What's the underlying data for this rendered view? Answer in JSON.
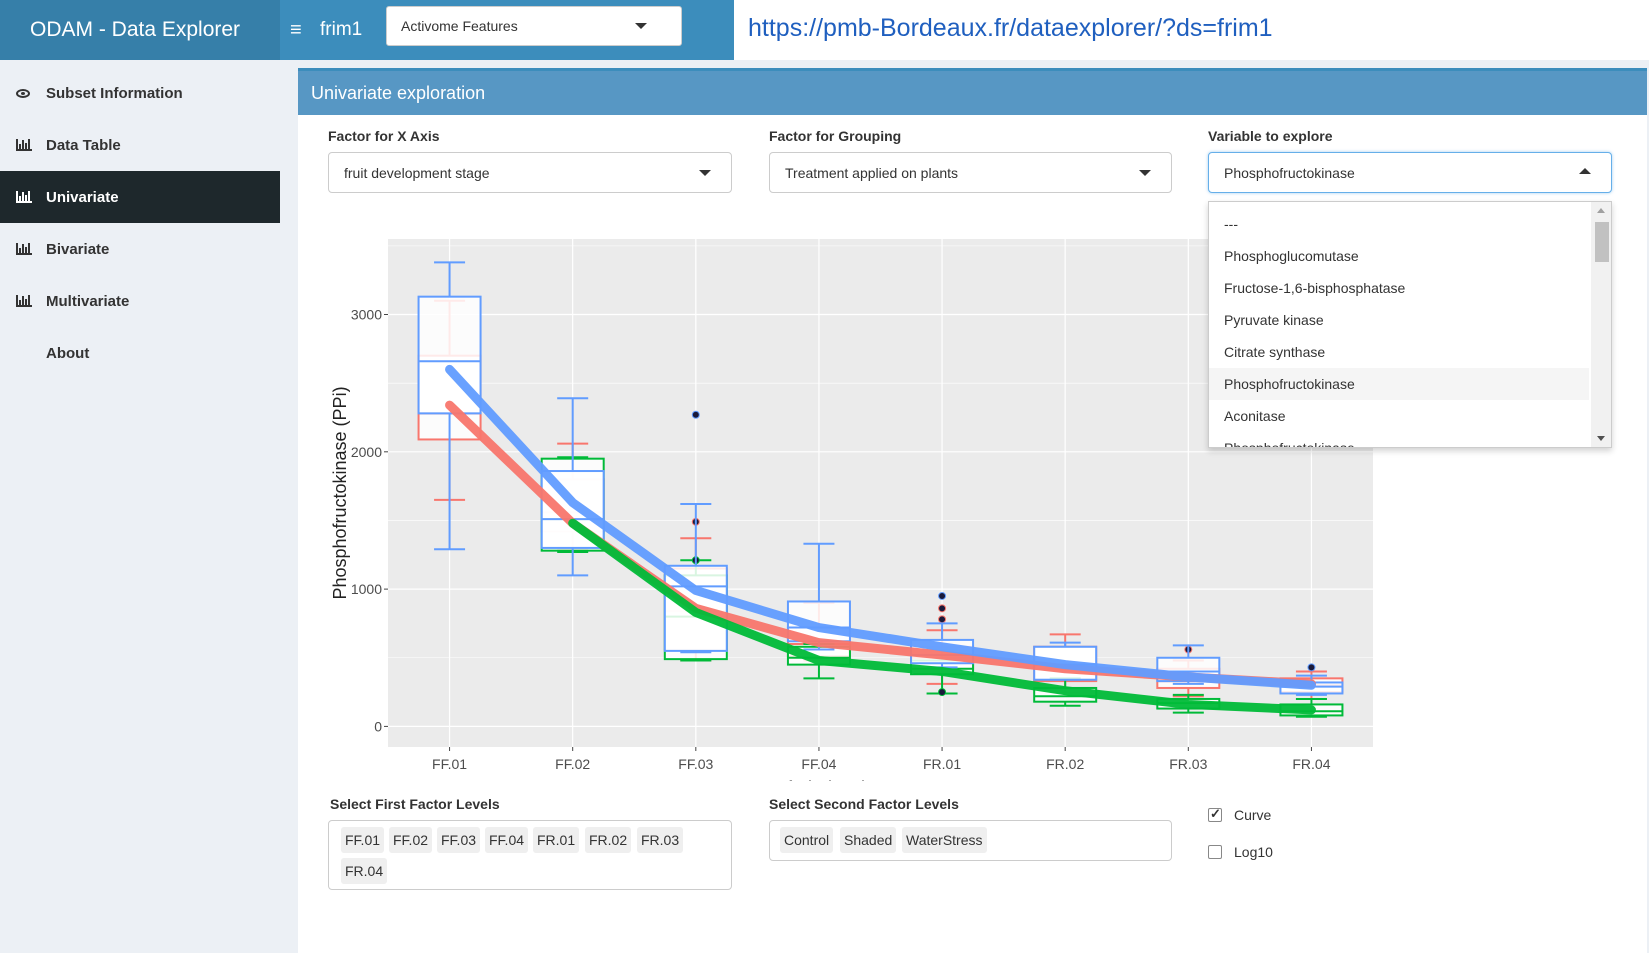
{
  "app": {
    "brand": "ODAM - Data Explorer",
    "dataset_name": "frim1",
    "feature_select": "Activome Features",
    "url": "https://pmb-Bordeaux.fr/dataexplorer/?ds=frim1"
  },
  "sidebar": {
    "items": [
      {
        "label": "Subset Information",
        "icon": "eye-icon"
      },
      {
        "label": "Data Table",
        "icon": "bar-chart-icon"
      },
      {
        "label": "Univariate",
        "icon": "bar-chart-icon",
        "active": true
      },
      {
        "label": "Bivariate",
        "icon": "bar-chart-icon"
      },
      {
        "label": "Multivariate",
        "icon": "bar-chart-icon"
      },
      {
        "label": "About",
        "icon": "info-icon"
      }
    ]
  },
  "panel": {
    "title": "Univariate exploration",
    "x_factor_label": "Factor for X Axis",
    "x_factor_value": "fruit development stage",
    "group_factor_label": "Factor for Grouping",
    "group_factor_value": "Treatment applied on plants",
    "variable_label": "Variable to explore",
    "variable_value": "Phosphofructokinase",
    "variable_options": [
      "---",
      "Phosphoglucomutase",
      "Fructose-1,6-bisphosphatase",
      "Pyruvate kinase",
      "Citrate synthase",
      "Phosphofructokinase",
      "Aconitase",
      "Phosphofructokinase"
    ],
    "first_levels_label": "Select First Factor Levels",
    "first_levels": [
      "FF.01",
      "FF.02",
      "FF.03",
      "FF.04",
      "FR.01",
      "FR.02",
      "FR.03",
      "FR.04"
    ],
    "second_levels_label": "Select Second Factor Levels",
    "second_levels": [
      "Control",
      "Shaded",
      "WaterStress"
    ],
    "curve_label": "Curve",
    "curve_checked": true,
    "log_label": "Log10",
    "log_checked": false
  },
  "chart_data": {
    "type": "box",
    "xlabel": "fruit development stage",
    "ylabel": "Phosphofructokinase (PPi)",
    "categories": [
      "FF.01",
      "FF.02",
      "FF.03",
      "FF.04",
      "FR.01",
      "FR.02",
      "FR.03",
      "FR.04"
    ],
    "ylim": [
      -150,
      3550
    ],
    "yticks": [
      0,
      1000,
      2000,
      3000
    ],
    "grid": true,
    "series": [
      {
        "color": "#f8766d",
        "curve": [
          2340,
          1480,
          860,
          610,
          520,
          420,
          360,
          310
        ],
        "boxes": [
          {
            "min": 1650,
            "q1": 2090,
            "median": 2280,
            "q3": 2700,
            "max": 3100
          },
          {
            "min": 1290,
            "q1": 1420,
            "median": 1560,
            "q3": 1800,
            "max": 2060
          },
          {
            "min": 480,
            "q1": 560,
            "median": 840,
            "q3": 1150,
            "max": 1370,
            "outliers": [
              1490
            ]
          },
          {
            "min": 480,
            "q1": 510,
            "median": 600,
            "q3": 720,
            "max": 900
          },
          {
            "min": 310,
            "q1": 420,
            "median": 500,
            "q3": 580,
            "max": 700,
            "outliers": [
              780,
              860
            ]
          },
          {
            "min": 250,
            "q1": 330,
            "median": 420,
            "q3": 580,
            "max": 670
          },
          {
            "min": 220,
            "q1": 280,
            "median": 330,
            "q3": 420,
            "max": 480,
            "outliers": [
              560
            ]
          },
          {
            "min": 200,
            "q1": 250,
            "median": 300,
            "q3": 350,
            "max": 400
          }
        ]
      },
      {
        "color": "#00ba38",
        "curve": [
          null,
          1480,
          830,
          480,
          400,
          260,
          160,
          120
        ],
        "boxes": [
          null,
          {
            "min": 1270,
            "q1": 1280,
            "median": 1510,
            "q3": 1950,
            "max": 1960
          },
          {
            "min": 480,
            "q1": 490,
            "median": 800,
            "q3": 1100,
            "max": 1210,
            "outliers": [
              1210
            ]
          },
          {
            "min": 350,
            "q1": 450,
            "median": 500,
            "q3": 580,
            "max": 600
          },
          {
            "min": 240,
            "q1": 380,
            "median": 420,
            "q3": 480,
            "max": 560,
            "outliers": [
              250
            ]
          },
          {
            "min": 150,
            "q1": 180,
            "median": 220,
            "q3": 280,
            "max": 350
          },
          {
            "min": 100,
            "q1": 130,
            "median": 170,
            "q3": 200,
            "max": 230
          },
          {
            "min": 70,
            "q1": 80,
            "median": 110,
            "q3": 160,
            "max": 200
          }
        ]
      },
      {
        "color": "#619cff",
        "curve": [
          2600,
          1630,
          990,
          720,
          580,
          450,
          360,
          300
        ],
        "boxes": [
          {
            "min": 1290,
            "q1": 2280,
            "median": 2660,
            "q3": 3130,
            "max": 3380
          },
          {
            "min": 1100,
            "q1": 1300,
            "median": 1510,
            "q3": 1860,
            "max": 2390
          },
          {
            "min": 540,
            "q1": 550,
            "median": 1020,
            "q3": 1170,
            "max": 1620,
            "outliers": [
              2270
            ]
          },
          {
            "min": 560,
            "q1": 620,
            "median": 720,
            "q3": 910,
            "max": 1330
          },
          {
            "min": 430,
            "q1": 460,
            "median": 520,
            "q3": 630,
            "max": 750,
            "outliers": [
              950
            ]
          },
          {
            "min": 340,
            "q1": 340,
            "median": 450,
            "q3": 580,
            "max": 610
          },
          {
            "min": 310,
            "q1": 330,
            "median": 400,
            "q3": 500,
            "max": 590
          },
          {
            "min": 230,
            "q1": 240,
            "median": 290,
            "q3": 320,
            "max": 370,
            "outliers": [
              430
            ]
          }
        ]
      }
    ]
  }
}
